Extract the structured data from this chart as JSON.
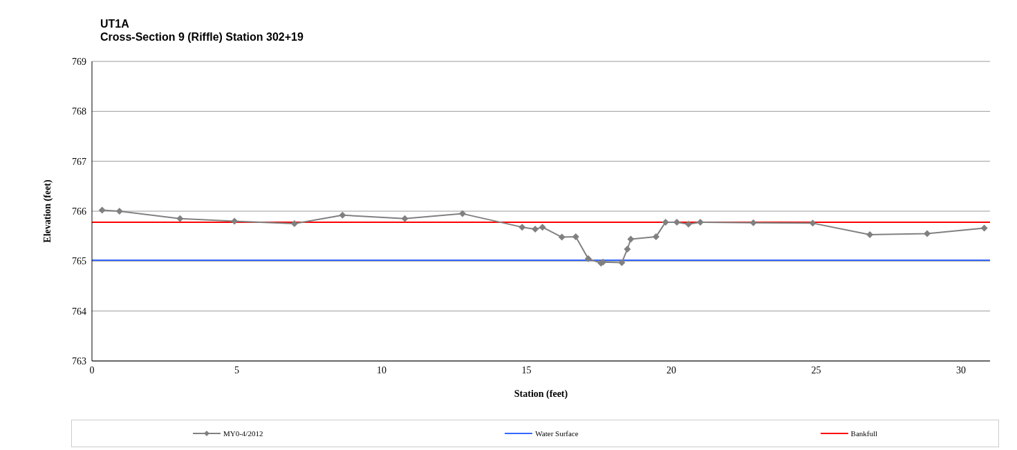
{
  "chart_data": {
    "type": "line",
    "title": "UT1A",
    "subtitle": "Cross-Section 9 (Riffle) Station 302+19",
    "xlabel": "Station (feet)",
    "ylabel": "Elevation (feet)",
    "xlim": [
      0,
      31
    ],
    "xticks": [
      0,
      5,
      10,
      15,
      20,
      25,
      30
    ],
    "ylim": [
      763,
      769
    ],
    "yticks": [
      763,
      764,
      765,
      766,
      767,
      768,
      769
    ],
    "grid": "y",
    "legend": "bottom",
    "marker": "diamond",
    "line_style": "solid",
    "series": [
      {
        "name": "MY0-4/2012",
        "color": "#808080",
        "x": [
          0.35,
          0.95,
          3.04,
          4.92,
          6.99,
          8.65,
          10.8,
          12.79,
          14.85,
          15.3,
          15.55,
          16.22,
          16.7,
          17.13,
          17.57,
          17.64,
          18.29,
          18.48,
          18.6,
          19.47,
          19.8,
          20.19,
          20.59,
          21.0,
          22.83,
          24.88,
          26.85,
          28.83,
          30.8
        ],
        "values": [
          766.02,
          766.0,
          765.85,
          765.8,
          765.75,
          765.92,
          765.85,
          765.95,
          765.68,
          765.64,
          765.68,
          765.48,
          765.49,
          765.05,
          764.96,
          764.98,
          764.97,
          765.24,
          765.44,
          765.49,
          765.78,
          765.78,
          765.74,
          765.78,
          765.77,
          765.76,
          765.53,
          765.55,
          765.66
        ]
      }
    ],
    "ref_lines": [
      {
        "axis": "y",
        "value": 765.02,
        "label": "Water Surface",
        "color": "#3366ff"
      },
      {
        "axis": "y",
        "value": 765.78,
        "label": "Bankfull",
        "color": "#ff0000"
      }
    ]
  }
}
